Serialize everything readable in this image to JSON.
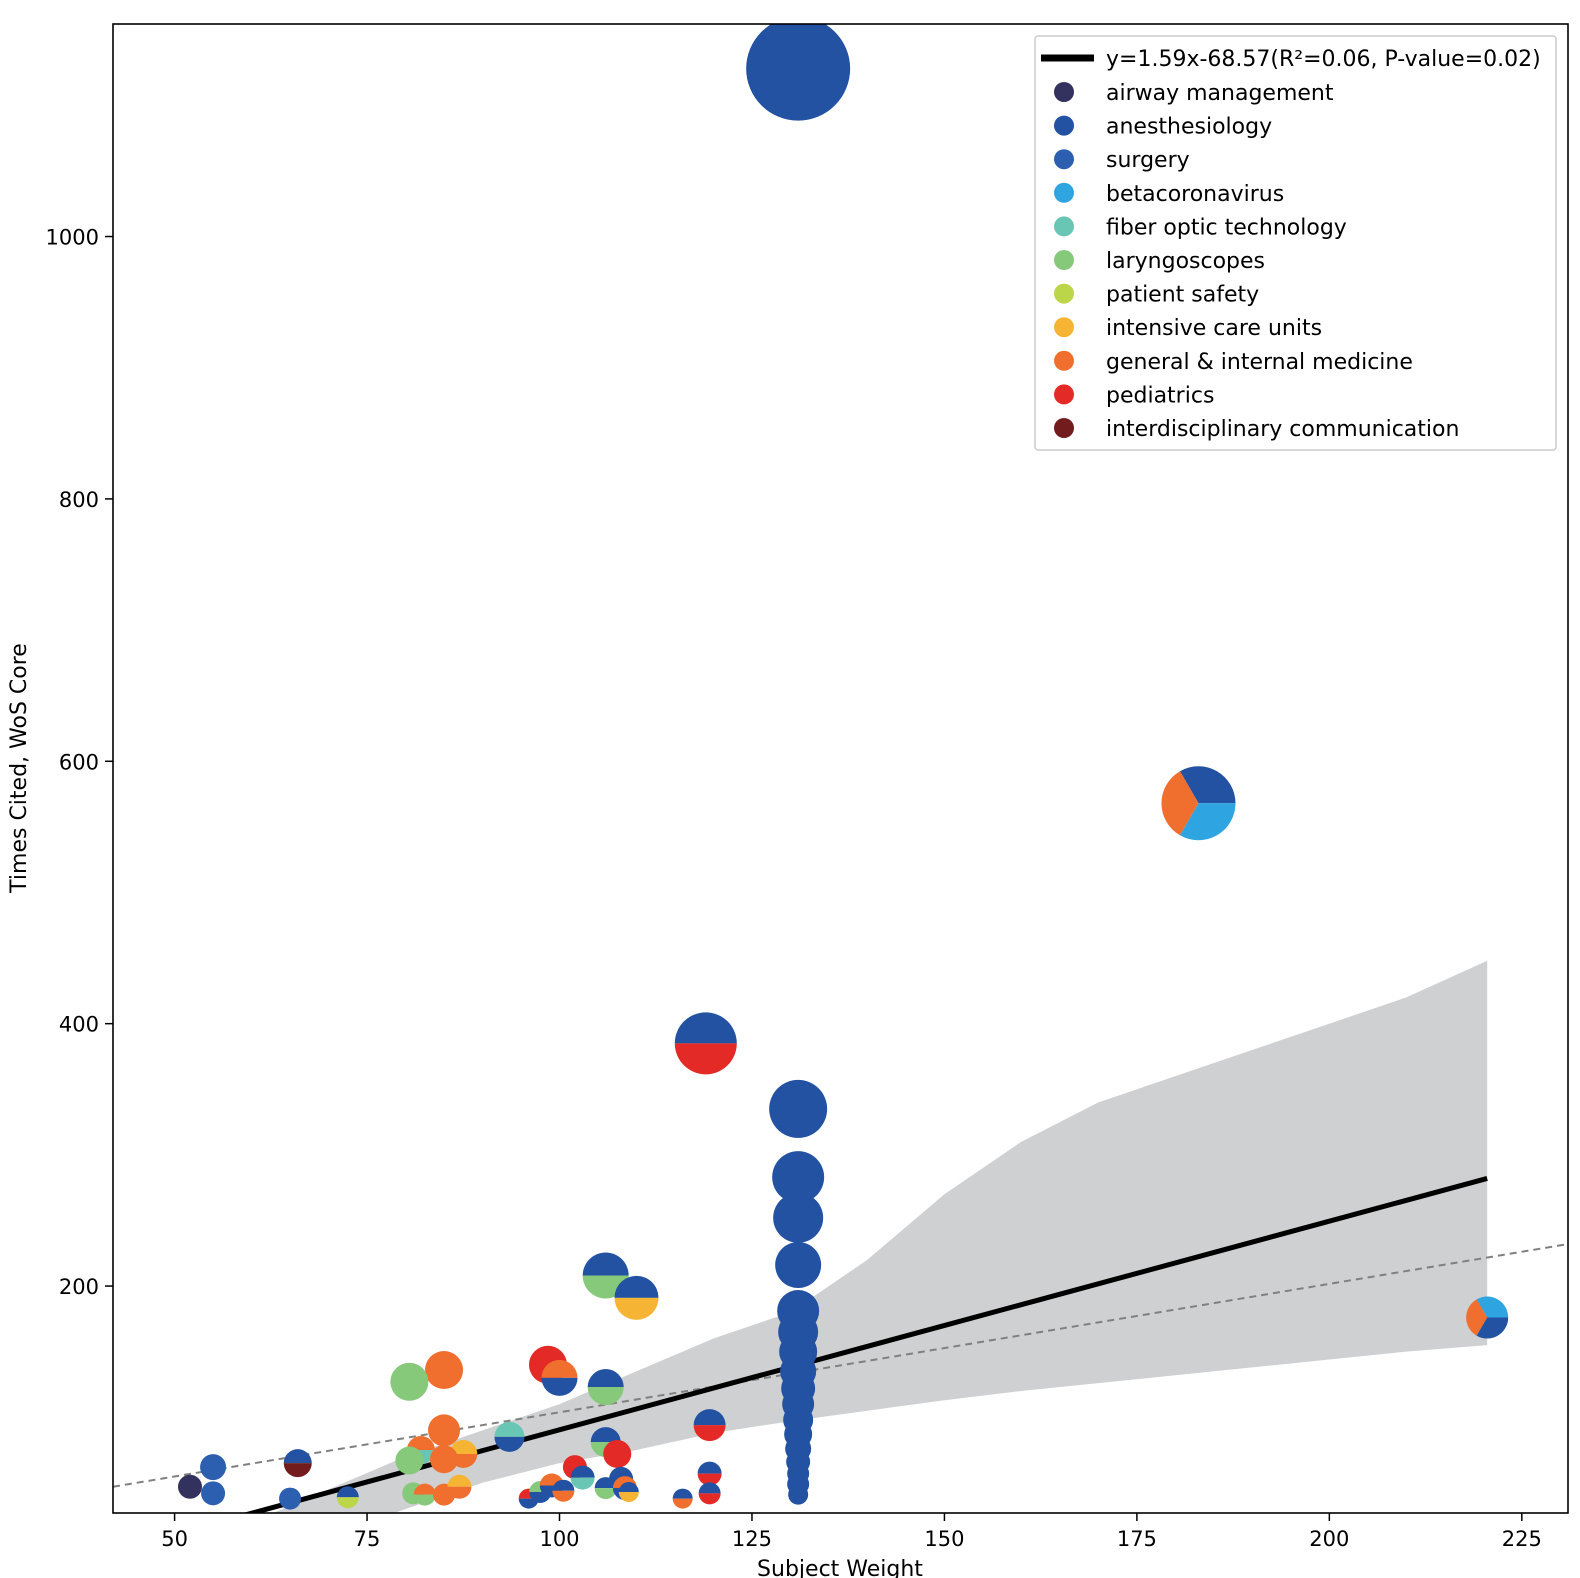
{
  "chart_data": {
    "type": "scatter",
    "title": "",
    "xlabel": "Subject Weight",
    "ylabel": "Times Cited, WoS Core",
    "xlim": [
      42,
      231
    ],
    "ylim": [
      27,
      1162
    ],
    "xticks": [
      50,
      75,
      100,
      125,
      150,
      175,
      200,
      225
    ],
    "yticks": [
      200,
      400,
      600,
      800,
      1000
    ],
    "grid": false,
    "legend_position": "top-right",
    "regression": {
      "label": "y=1.59x-68.57(R²=0.06, P-value=0.02)",
      "slope": 1.59,
      "intercept": -68.57,
      "x_range": [
        52,
        220.5
      ],
      "color": "#000000",
      "confidence_band": {
        "color": "#cfd0d2",
        "x": [
          52,
          60,
          70,
          80,
          90,
          100,
          110,
          120,
          130,
          140,
          150,
          160,
          170,
          180,
          190,
          200,
          210,
          220.5
        ],
        "upper": [
          0,
          20,
          45,
          70,
          90,
          110,
          135,
          160,
          180,
          220,
          270,
          310,
          340,
          360,
          380,
          400,
          420,
          448
        ],
        "lower": [
          0,
          0,
          10,
          30,
          50,
          65,
          75,
          88,
          97,
          105,
          113,
          120,
          126,
          132,
          138,
          144,
          150,
          155
        ]
      }
    },
    "reference_line": {
      "style": "dashed",
      "color": "#808080",
      "x": [
        42,
        231
      ],
      "y": [
        47,
        232
      ]
    },
    "categories": [
      {
        "name": "airway management",
        "color": "#33315e"
      },
      {
        "name": "anesthesiology",
        "color": "#2352a3"
      },
      {
        "name": "surgery",
        "color": "#2c5fb0"
      },
      {
        "name": "betacoronavirus",
        "color": "#2ea4e0"
      },
      {
        "name": "fiber optic technology",
        "color": "#69c5b4"
      },
      {
        "name": "laryngoscopes",
        "color": "#86c97a"
      },
      {
        "name": "patient safety",
        "color": "#bcd64a"
      },
      {
        "name": "intensive care units",
        "color": "#f5b434"
      },
      {
        "name": "general & internal medicine",
        "color": "#f06e2e"
      },
      {
        "name": "pediatrics",
        "color": "#e32a26"
      },
      {
        "name": "interdisciplinary communication",
        "color": "#721c1e"
      }
    ],
    "points": [
      {
        "x": 131,
        "y": 1150,
        "size": 32,
        "slices": [
          "anesthesiology"
        ]
      },
      {
        "x": 131,
        "y": 1128,
        "size": 52,
        "slices": [
          "anesthesiology"
        ]
      },
      {
        "x": 183,
        "y": 568,
        "size": 37,
        "slices": [
          "anesthesiology",
          "general & internal medicine",
          "betacoronavirus"
        ]
      },
      {
        "x": 119,
        "y": 385,
        "size": 31,
        "slices": [
          "anesthesiology",
          "pediatrics"
        ]
      },
      {
        "x": 131,
        "y": 335,
        "size": 29,
        "slices": [
          "anesthesiology"
        ]
      },
      {
        "x": 131,
        "y": 283,
        "size": 26,
        "slices": [
          "anesthesiology"
        ]
      },
      {
        "x": 131,
        "y": 252,
        "size": 25,
        "slices": [
          "anesthesiology"
        ]
      },
      {
        "x": 131,
        "y": 216,
        "size": 23,
        "slices": [
          "anesthesiology"
        ]
      },
      {
        "x": 131,
        "y": 181,
        "size": 21,
        "slices": [
          "anesthesiology"
        ]
      },
      {
        "x": 131,
        "y": 165,
        "size": 20,
        "slices": [
          "anesthesiology"
        ]
      },
      {
        "x": 131,
        "y": 150,
        "size": 19,
        "slices": [
          "anesthesiology"
        ]
      },
      {
        "x": 131,
        "y": 135,
        "size": 18,
        "slices": [
          "anesthesiology"
        ]
      },
      {
        "x": 131,
        "y": 122,
        "size": 17,
        "slices": [
          "anesthesiology"
        ]
      },
      {
        "x": 131,
        "y": 110,
        "size": 16,
        "slices": [
          "anesthesiology"
        ]
      },
      {
        "x": 131,
        "y": 98,
        "size": 15,
        "slices": [
          "anesthesiology"
        ]
      },
      {
        "x": 131,
        "y": 87,
        "size": 14,
        "slices": [
          "anesthesiology"
        ]
      },
      {
        "x": 131,
        "y": 76,
        "size": 13,
        "slices": [
          "anesthesiology"
        ]
      },
      {
        "x": 131,
        "y": 66,
        "size": 12,
        "slices": [
          "anesthesiology"
        ]
      },
      {
        "x": 131,
        "y": 57,
        "size": 11,
        "slices": [
          "anesthesiology"
        ]
      },
      {
        "x": 131,
        "y": 49,
        "size": 11,
        "slices": [
          "anesthesiology"
        ]
      },
      {
        "x": 131,
        "y": 41,
        "size": 10,
        "slices": [
          "anesthesiology"
        ]
      },
      {
        "x": 220.5,
        "y": 176,
        "size": 21,
        "slices": [
          "betacoronavirus",
          "general & internal medicine",
          "anesthesiology"
        ]
      },
      {
        "x": 106,
        "y": 208,
        "size": 23,
        "slices": [
          "anesthesiology",
          "laryngoscopes"
        ]
      },
      {
        "x": 110,
        "y": 191,
        "size": 22,
        "slices": [
          "anesthesiology",
          "intensive care units"
        ]
      },
      {
        "x": 98.5,
        "y": 140,
        "size": 19,
        "slices": [
          "pediatrics"
        ]
      },
      {
        "x": 100,
        "y": 130,
        "size": 18,
        "slices": [
          "general & internal medicine",
          "anesthesiology"
        ]
      },
      {
        "x": 106,
        "y": 123,
        "size": 18,
        "slices": [
          "anesthesiology",
          "laryngoscopes"
        ]
      },
      {
        "x": 85,
        "y": 136,
        "size": 19,
        "slices": [
          "general & internal medicine"
        ]
      },
      {
        "x": 80.5,
        "y": 127,
        "size": 19,
        "slices": [
          "laryngoscopes"
        ]
      },
      {
        "x": 119.5,
        "y": 94,
        "size": 16,
        "slices": [
          "anesthesiology",
          "pediatrics"
        ]
      },
      {
        "x": 93.5,
        "y": 85,
        "size": 15,
        "slices": [
          "fiber optic technology",
          "anesthesiology"
        ]
      },
      {
        "x": 85,
        "y": 90,
        "size": 16,
        "slices": [
          "general & internal medicine"
        ]
      },
      {
        "x": 106,
        "y": 81,
        "size": 15,
        "slices": [
          "anesthesiology",
          "laryngoscopes"
        ]
      },
      {
        "x": 107.5,
        "y": 72,
        "size": 14,
        "slices": [
          "pediatrics"
        ]
      },
      {
        "x": 82,
        "y": 75,
        "size": 14,
        "slices": [
          "general & internal medicine",
          "fiber optic technology"
        ]
      },
      {
        "x": 87.5,
        "y": 72,
        "size": 14,
        "slices": [
          "intensive care units",
          "general & internal medicine"
        ]
      },
      {
        "x": 85,
        "y": 68,
        "size": 14,
        "slices": [
          "general & internal medicine"
        ]
      },
      {
        "x": 80.5,
        "y": 67,
        "size": 14,
        "slices": [
          "laryngoscopes"
        ]
      },
      {
        "x": 66,
        "y": 65,
        "size": 14,
        "slices": [
          "anesthesiology",
          "interdisciplinary communication"
        ]
      },
      {
        "x": 55,
        "y": 62,
        "size": 13,
        "slices": [
          "surgery"
        ]
      },
      {
        "x": 52,
        "y": 47,
        "size": 12,
        "slices": [
          "airway management"
        ]
      },
      {
        "x": 55,
        "y": 42,
        "size": 12,
        "slices": [
          "surgery"
        ]
      },
      {
        "x": 65,
        "y": 38,
        "size": 11,
        "slices": [
          "surgery"
        ]
      },
      {
        "x": 72.5,
        "y": 39,
        "size": 11,
        "slices": [
          "anesthesiology",
          "patient safety"
        ]
      },
      {
        "x": 81,
        "y": 42,
        "size": 11,
        "slices": [
          "laryngoscopes"
        ]
      },
      {
        "x": 82.5,
        "y": 41,
        "size": 11,
        "slices": [
          "general & internal medicine",
          "laryngoscopes"
        ]
      },
      {
        "x": 85,
        "y": 41,
        "size": 11,
        "slices": [
          "general & internal medicine"
        ]
      },
      {
        "x": 87,
        "y": 47,
        "size": 12,
        "slices": [
          "intensive care units",
          "general & internal medicine"
        ]
      },
      {
        "x": 96,
        "y": 38,
        "size": 10,
        "slices": [
          "pediatrics",
          "anesthesiology"
        ]
      },
      {
        "x": 97.5,
        "y": 43,
        "size": 11,
        "slices": [
          "laryngoscopes",
          "anesthesiology"
        ]
      },
      {
        "x": 99,
        "y": 48,
        "size": 12,
        "slices": [
          "general & internal medicine",
          "anesthesiology"
        ]
      },
      {
        "x": 100.5,
        "y": 44,
        "size": 11,
        "slices": [
          "anesthesiology",
          "general & internal medicine"
        ]
      },
      {
        "x": 102,
        "y": 62,
        "size": 12,
        "slices": [
          "pediatrics"
        ]
      },
      {
        "x": 103,
        "y": 54,
        "size": 12,
        "slices": [
          "anesthesiology",
          "fiber optic technology"
        ]
      },
      {
        "x": 106,
        "y": 46,
        "size": 11,
        "slices": [
          "anesthesiology",
          "laryngoscopes"
        ]
      },
      {
        "x": 108,
        "y": 53,
        "size": 12,
        "slices": [
          "anesthesiology"
        ]
      },
      {
        "x": 108.5,
        "y": 46,
        "size": 12,
        "slices": [
          "general & internal medicine",
          "anesthesiology"
        ]
      },
      {
        "x": 109,
        "y": 43,
        "size": 10,
        "slices": [
          "anesthesiology",
          "intensive care units"
        ]
      },
      {
        "x": 116,
        "y": 38,
        "size": 10,
        "slices": [
          "anesthesiology",
          "general & internal medicine"
        ]
      },
      {
        "x": 119.5,
        "y": 57,
        "size": 12,
        "slices": [
          "anesthesiology",
          "pediatrics"
        ]
      },
      {
        "x": 119.5,
        "y": 42,
        "size": 11,
        "slices": [
          "anesthesiology",
          "pediatrics"
        ]
      }
    ]
  }
}
